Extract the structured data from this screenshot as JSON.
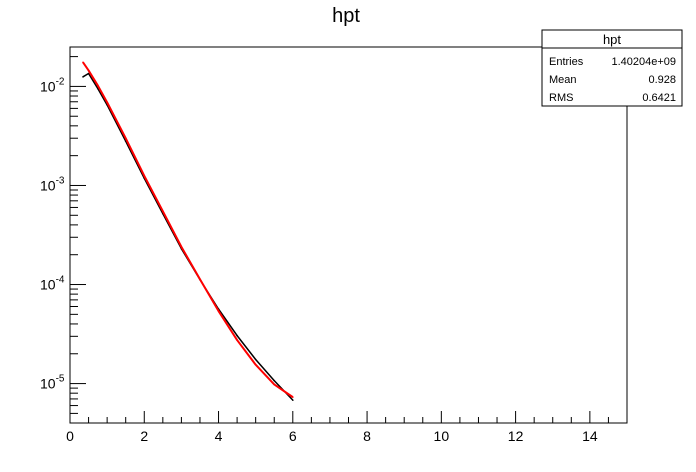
{
  "chart_data": {
    "type": "line",
    "title": "hpt",
    "xlabel": "",
    "ylabel": "",
    "xlim": [
      0,
      15
    ],
    "ylim": [
      4e-06,
      0.025
    ],
    "ylog": true,
    "grid": false,
    "x_ticks": [
      "0",
      "2",
      "4",
      "6",
      "8",
      "10",
      "12",
      "14"
    ],
    "y_ticks": [
      {
        "value": 0.01,
        "base": "10",
        "exp": "-2"
      },
      {
        "value": 0.001,
        "base": "10",
        "exp": "-3"
      },
      {
        "value": 0.0001,
        "base": "10",
        "exp": "-4"
      },
      {
        "value": 1e-05,
        "base": "10",
        "exp": "-5"
      }
    ],
    "series": [
      {
        "color": "#000000",
        "x": [
          0.35,
          0.5,
          0.75,
          1.0,
          1.5,
          2.0,
          2.5,
          3.0,
          3.5,
          4.0,
          4.5,
          5.0,
          5.5,
          6.0
        ],
        "y": [
          0.0125,
          0.0135,
          0.0095,
          0.0065,
          0.0028,
          0.00118,
          0.00052,
          0.00023,
          0.000112,
          5.65e-05,
          3.05e-05,
          1.75e-05,
          1.07e-05,
          6.8e-06
        ]
      },
      {
        "color": "#ff0000",
        "x": [
          0.35,
          0.5,
          0.75,
          1.0,
          1.5,
          2.0,
          2.5,
          3.0,
          3.5,
          4.0,
          4.5,
          5.0,
          5.5,
          6.0
        ],
        "y": [
          0.0175,
          0.0145,
          0.0102,
          0.0069,
          0.003,
          0.00125,
          0.00055,
          0.00024,
          0.000113,
          5.4e-05,
          2.75e-05,
          1.55e-05,
          9.8e-06,
          7.3e-06
        ]
      }
    ]
  },
  "stats_box": {
    "title": "hpt",
    "rows": [
      {
        "label": "Entries",
        "value": "1.40204e+09"
      },
      {
        "label": "Mean",
        "value": "0.928"
      },
      {
        "label": "RMS",
        "value": "0.6421"
      }
    ]
  }
}
